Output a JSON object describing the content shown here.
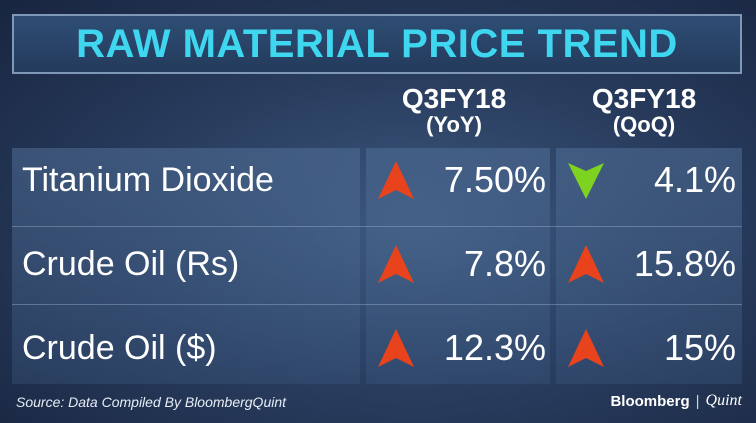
{
  "title": "RAW MATERIAL PRICE TREND",
  "columns": [
    {
      "line1": "Q3FY18",
      "line2": "(YoY)"
    },
    {
      "line1": "Q3FY18",
      "line2": "(QoQ)"
    }
  ],
  "rows": [
    {
      "label": "Titanium Dioxide",
      "yoy": {
        "value": "7.50%",
        "direction": "up"
      },
      "qoq": {
        "value": "4.1%",
        "direction": "down"
      }
    },
    {
      "label": "Crude Oil (Rs)",
      "yoy": {
        "value": "7.8%",
        "direction": "up"
      },
      "qoq": {
        "value": "15.8%",
        "direction": "up"
      }
    },
    {
      "label": "Crude Oil ($)",
      "yoy": {
        "value": "12.3%",
        "direction": "up"
      },
      "qoq": {
        "value": "15%",
        "direction": "up"
      }
    }
  ],
  "icons": {
    "up": "arrow-up-icon",
    "down": "arrow-down-icon"
  },
  "colors": {
    "title": "#3fd6f0",
    "up_arrow": "#e8431c",
    "down_arrow": "#7ed321"
  },
  "footer": {
    "source": "Source: Data Compiled By BloombergQuint",
    "brand_primary": "Bloomberg",
    "brand_separator": "|",
    "brand_secondary": "Quint"
  }
}
